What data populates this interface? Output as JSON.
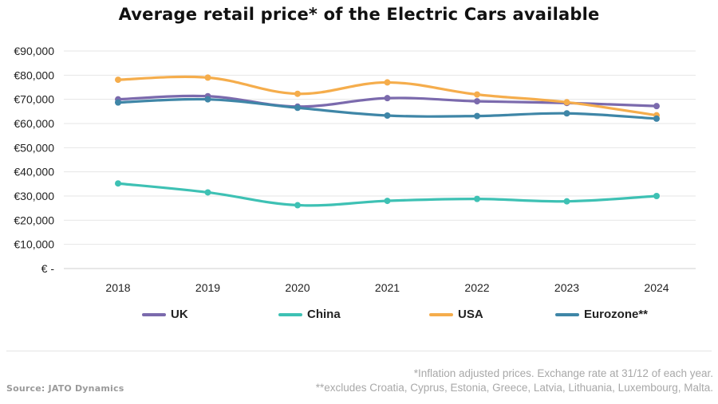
{
  "chart_data": {
    "type": "line",
    "title": "Average retail price* of the Electric Cars available",
    "xlabel": "",
    "ylabel": "",
    "x": [
      "2018",
      "2019",
      "2020",
      "2021",
      "2022",
      "2023",
      "2024"
    ],
    "ylim": [
      0,
      90000
    ],
    "y_ticks": [
      0,
      10000,
      20000,
      30000,
      40000,
      50000,
      60000,
      70000,
      80000,
      90000
    ],
    "y_tick_labels": [
      "€ -",
      "€10,000",
      "€20,000",
      "€30,000",
      "€40,000",
      "€50,000",
      "€60,000",
      "€70,000",
      "€80,000",
      "€90,000"
    ],
    "grid": true,
    "legend_position": "bottom",
    "series": [
      {
        "name": "UK",
        "color": "#7b6aad",
        "values": [
          70000,
          71300,
          67000,
          70500,
          69200,
          68500,
          67200
        ]
      },
      {
        "name": "China",
        "color": "#3ec1b4",
        "values": [
          35200,
          31500,
          26200,
          28000,
          28800,
          27800,
          30000
        ]
      },
      {
        "name": "USA",
        "color": "#f5ad4c",
        "values": [
          78100,
          79000,
          72300,
          77000,
          72000,
          68800,
          63400
        ]
      },
      {
        "name": "Eurozone**",
        "color": "#3f86a7",
        "values": [
          68700,
          70000,
          66500,
          63300,
          63100,
          64200,
          62000
        ]
      }
    ]
  },
  "footer": {
    "source": "Source: JATO Dynamics",
    "note1": "*Inflation adjusted prices. Exchange rate at 31/12 of each year.",
    "note2": "**excludes Croatia, Cyprus, Estonia, Greece, Latvia, Lithuania, Luxembourg, Malta."
  }
}
